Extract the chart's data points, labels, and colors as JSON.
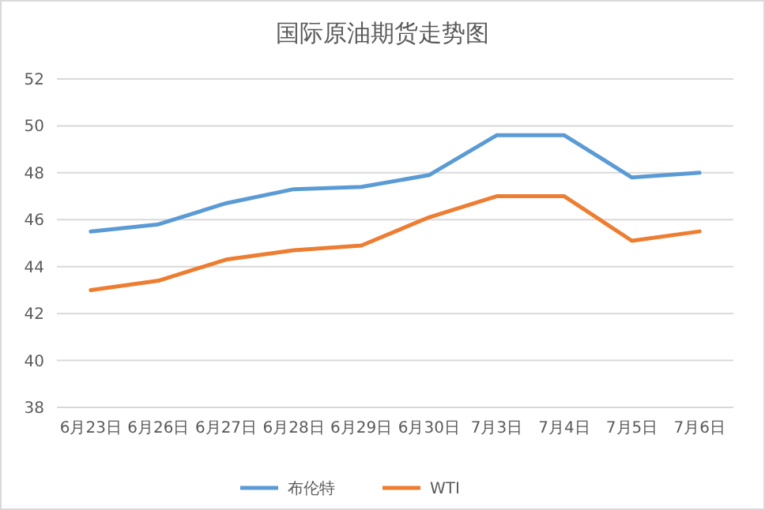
{
  "chart_data": {
    "type": "line",
    "title": "国际原油期货走势图",
    "categories": [
      "6月23日",
      "6月26日",
      "6月27日",
      "6月28日",
      "6月29日",
      "6月30日",
      "7月3日",
      "7月4日",
      "7月5日",
      "7月6日"
    ],
    "series": [
      {
        "name": "布伦特",
        "color": "#5b9bd5",
        "values": [
          45.5,
          45.8,
          46.7,
          47.3,
          47.4,
          47.9,
          49.6,
          49.6,
          47.8,
          48.0
        ]
      },
      {
        "name": "WTI",
        "color": "#ed7d31",
        "values": [
          43.0,
          43.4,
          44.3,
          44.7,
          44.9,
          46.1,
          47.0,
          47.0,
          45.1,
          45.5
        ]
      }
    ],
    "ylim": [
      38,
      52
    ],
    "yticks": [
      38,
      40,
      42,
      44,
      46,
      48,
      50,
      52
    ],
    "grid": "y",
    "legend": "bottom",
    "marker": "none",
    "line_style": "solid"
  }
}
